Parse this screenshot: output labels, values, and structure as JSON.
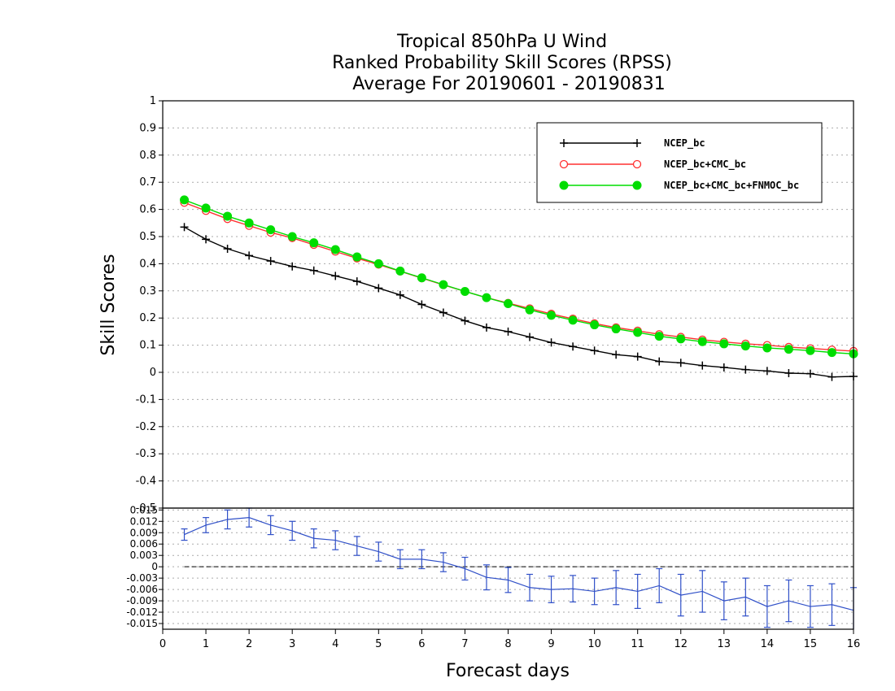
{
  "chart_data": [
    {
      "type": "line",
      "title": [
        "Tropical 850hPa U Wind",
        "Ranked Probability Skill Scores (RPSS)",
        " Average For 20190601 - 20190831"
      ],
      "xlabel": "Forecast days",
      "ylabel": "Skill Scores",
      "xlim": [
        0,
        16
      ],
      "ylim": [
        -0.5,
        1
      ],
      "x_ticks": [
        "0",
        "1",
        "2",
        "3",
        "4",
        "5",
        "6",
        "7",
        "8",
        "9",
        "10",
        "11",
        "12",
        "13",
        "14",
        "15",
        "16"
      ],
      "y_ticks": [
        "-0.5",
        "-0.4",
        "-0.3",
        "-0.2",
        "-0.1",
        "0",
        "0.1",
        "0.2",
        "0.3",
        "0.4",
        "0.5",
        "0.6",
        "0.7",
        "0.8",
        "0.9",
        "1"
      ],
      "y_tick_values": [
        -0.5,
        -0.4,
        -0.3,
        -0.2,
        -0.1,
        0,
        0.1,
        0.2,
        0.3,
        0.4,
        0.5,
        0.6,
        0.7,
        0.8,
        0.9,
        1
      ],
      "grid": true,
      "legend_position": "top-right",
      "x": [
        0.5,
        1,
        1.5,
        2,
        2.5,
        3,
        3.5,
        4,
        4.5,
        5,
        5.5,
        6,
        6.5,
        7,
        7.5,
        8,
        8.5,
        9,
        9.5,
        10,
        10.5,
        11,
        11.5,
        12,
        12.5,
        13,
        13.5,
        14,
        14.5,
        15,
        15.5,
        16
      ],
      "series": [
        {
          "name": "NCEP_bc",
          "color": "#000000",
          "marker": "plus",
          "values": [
            0.535,
            0.49,
            0.455,
            0.43,
            0.41,
            0.39,
            0.375,
            0.355,
            0.335,
            0.31,
            0.285,
            0.25,
            0.22,
            0.19,
            0.165,
            0.15,
            0.13,
            0.11,
            0.095,
            0.08,
            0.065,
            0.058,
            0.04,
            0.035,
            0.025,
            0.018,
            0.01,
            0.005,
            -0.003,
            -0.005,
            -0.017,
            -0.015
          ]
        },
        {
          "name": "NCEP_bc+CMC_bc",
          "color": "#ff3030",
          "marker": "open-circle",
          "values": [
            0.625,
            0.595,
            0.565,
            0.54,
            0.515,
            0.495,
            0.47,
            0.445,
            0.42,
            0.397,
            0.372,
            0.347,
            0.322,
            0.298,
            0.275,
            0.255,
            0.235,
            0.215,
            0.197,
            0.18,
            0.165,
            0.153,
            0.14,
            0.13,
            0.12,
            0.112,
            0.105,
            0.1,
            0.093,
            0.088,
            0.083,
            0.078
          ]
        },
        {
          "name": "NCEP_bc+CMC_bc+FNMOC_bc",
          "color": "#00dd00",
          "marker": "filled-circle",
          "values": [
            0.635,
            0.605,
            0.575,
            0.55,
            0.525,
            0.5,
            0.477,
            0.452,
            0.425,
            0.4,
            0.373,
            0.348,
            0.323,
            0.298,
            0.275,
            0.253,
            0.23,
            0.21,
            0.192,
            0.175,
            0.16,
            0.147,
            0.133,
            0.123,
            0.113,
            0.105,
            0.097,
            0.09,
            0.085,
            0.08,
            0.073,
            0.068
          ]
        }
      ]
    },
    {
      "type": "line",
      "xlim": [
        0,
        16
      ],
      "ylim": [
        -0.0165,
        0.0155
      ],
      "y_ticks": [
        "-0.015",
        "-0.012",
        "-0.009",
        "-0.006",
        "-0.003",
        "0",
        "0.003",
        "0.006",
        "0.009",
        "0.012",
        "0.015"
      ],
      "y_tick_values": [
        -0.015,
        -0.012,
        -0.009,
        -0.006,
        -0.003,
        0,
        0.003,
        0.006,
        0.009,
        0.012,
        0.015
      ],
      "grid": true,
      "x": [
        0.5,
        1,
        1.5,
        2,
        2.5,
        3,
        3.5,
        4,
        4.5,
        5,
        5.5,
        6,
        6.5,
        7,
        7.5,
        8,
        8.5,
        9,
        9.5,
        10,
        10.5,
        11,
        11.5,
        12,
        12.5,
        13,
        13.5,
        14,
        14.5,
        15,
        15.5,
        16
      ],
      "series": [
        {
          "color": "#3050c8",
          "values": [
            0.0085,
            0.011,
            0.0125,
            0.013,
            0.011,
            0.0095,
            0.0075,
            0.007,
            0.0055,
            0.004,
            0.002,
            0.002,
            0.0012,
            -0.0005,
            -0.0028,
            -0.0035,
            -0.0055,
            -0.006,
            -0.0058,
            -0.0065,
            -0.0055,
            -0.0065,
            -0.005,
            -0.0075,
            -0.0065,
            -0.009,
            -0.008,
            -0.0105,
            -0.009,
            -0.0105,
            -0.01,
            -0.0115
          ],
          "error": [
            0.0015,
            0.002,
            0.0025,
            0.0025,
            0.0025,
            0.0025,
            0.0025,
            0.0025,
            0.0025,
            0.0025,
            0.0025,
            0.0025,
            0.0025,
            0.003,
            0.0033,
            0.0033,
            0.0035,
            0.0035,
            0.0035,
            0.0035,
            0.0045,
            0.0045,
            0.0045,
            0.0055,
            0.0055,
            0.005,
            0.005,
            0.0055,
            0.0055,
            0.0055,
            0.0055,
            0.006
          ]
        }
      ],
      "reference_line": 0
    }
  ]
}
